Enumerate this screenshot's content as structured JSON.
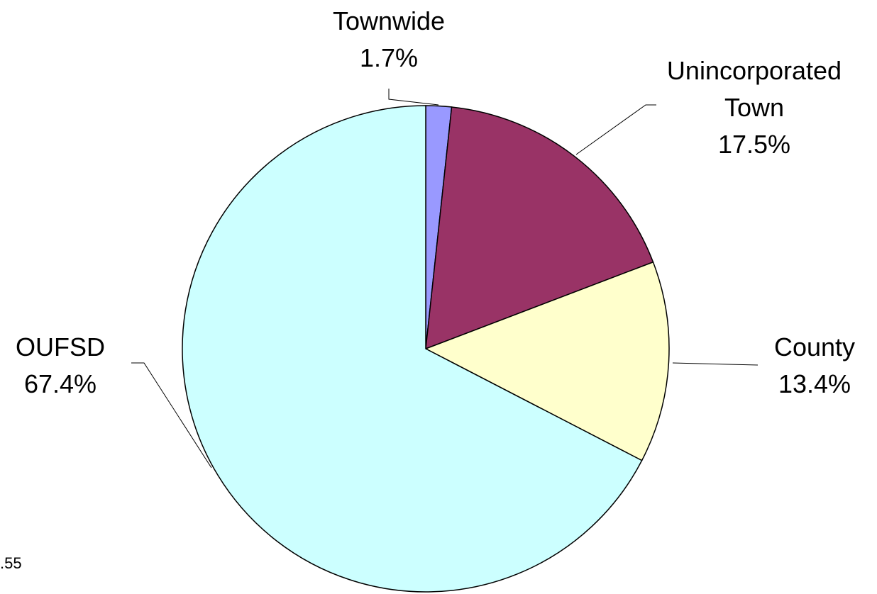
{
  "chart_data": {
    "type": "pie",
    "categories": [
      "Townwide",
      "Unincorporated Town",
      "County",
      "OUFSD"
    ],
    "values": [
      1.7,
      17.5,
      13.4,
      67.4
    ],
    "value_labels": [
      "1.7%",
      "17.5%",
      "13.4%",
      "67.4%"
    ],
    "colors": [
      "#9999ff",
      "#993366",
      "#ffffcc",
      "#ccffff"
    ],
    "footnote": ".55"
  }
}
